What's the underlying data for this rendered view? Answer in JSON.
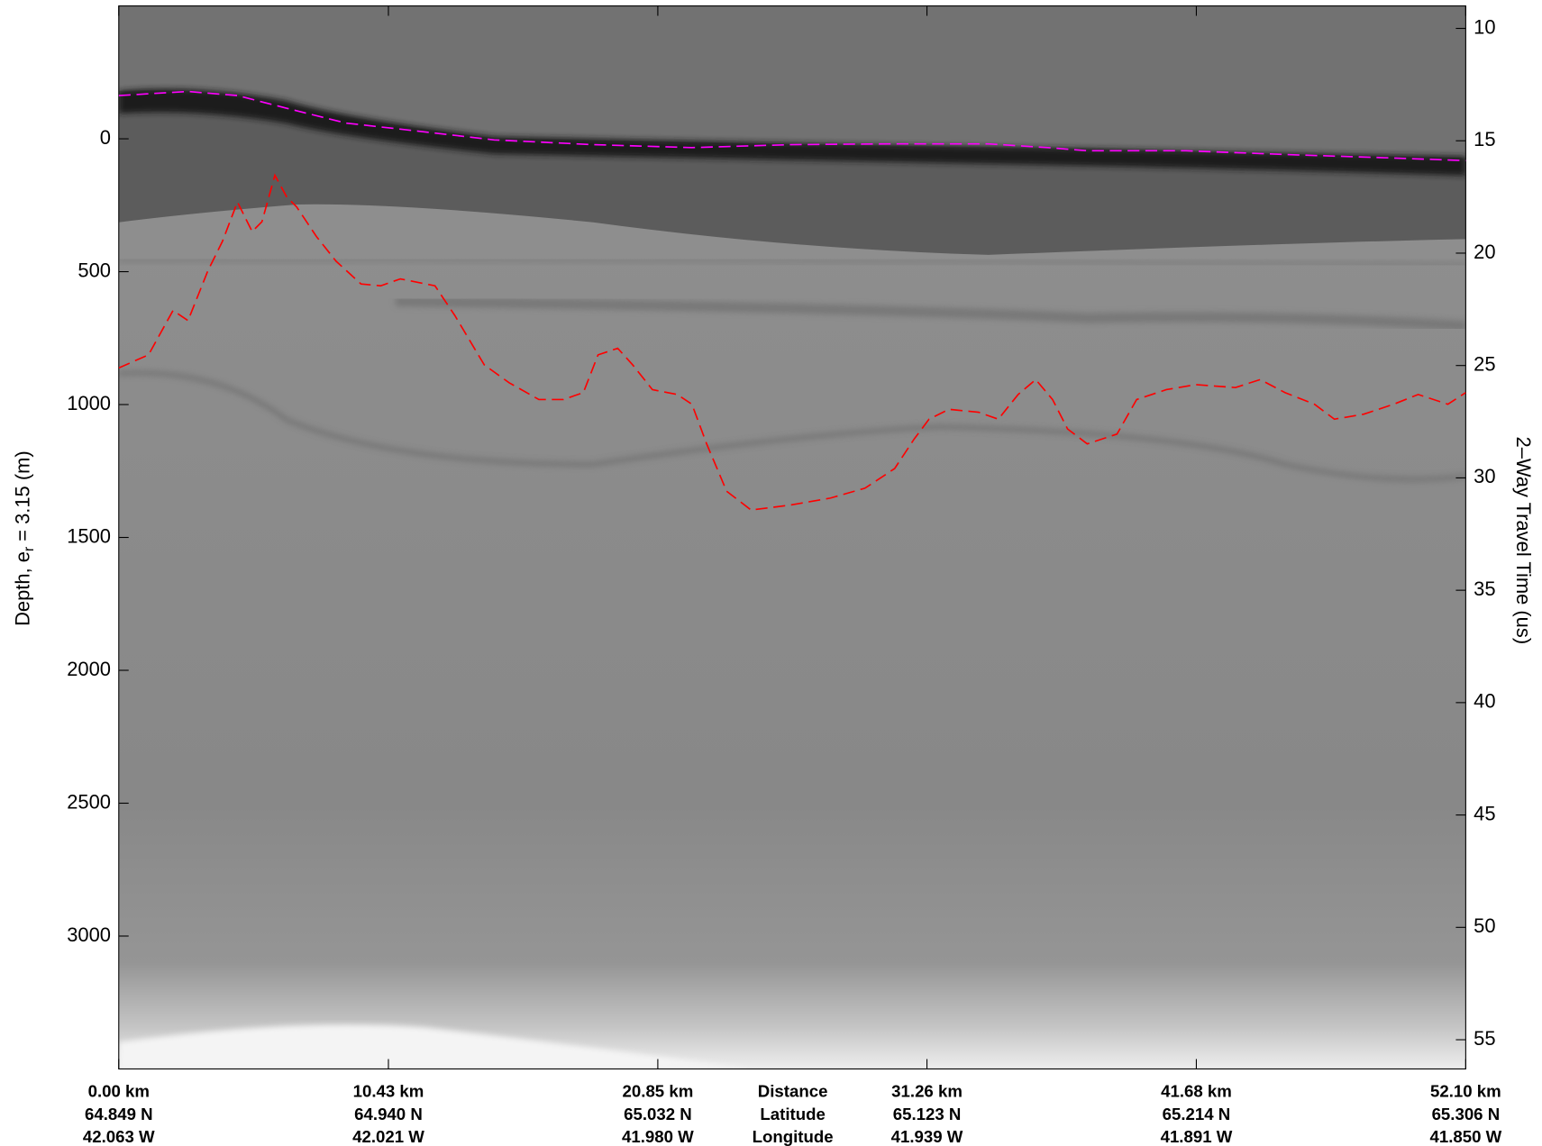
{
  "chart_data": {
    "type": "line",
    "y_label": {
      "main": "Depth, e",
      "subscript": "r",
      "rest": " = 3.15 (m)"
    },
    "y2_label": "2–Way Travel Time (us)",
    "xlim": [
      0,
      52.1
    ],
    "xticks": [
      {
        "value": 0,
        "label": "0.00 km"
      },
      {
        "value": 10.43,
        "label": "10.43 km"
      },
      {
        "value": 20.85,
        "label": "20.85 km"
      },
      {
        "value": 31.26,
        "label": "31.26 km"
      },
      {
        "value": 41.68,
        "label": "41.68 km"
      },
      {
        "value": 52.1,
        "label": "52.10 km"
      }
    ],
    "latitude": [
      "64.849 N",
      "64.940 N",
      "65.032 N",
      "65.123 N",
      "65.214 N",
      "65.306 N"
    ],
    "longitude": [
      "42.063 W",
      "42.021 W",
      "41.980 W",
      "41.939 W",
      "41.891 W",
      "41.850 W"
    ],
    "row_labels": [
      "Distance",
      "Latitude",
      "Longitude"
    ],
    "ylim": [
      -500,
      3500
    ],
    "y_reversed": true,
    "yticks": [
      0,
      500,
      1000,
      1500,
      2000,
      2500,
      3000
    ],
    "y2lim": [
      9,
      56.3
    ],
    "y2ticks": [
      10,
      15,
      20,
      25,
      30,
      35,
      40,
      45,
      50,
      55
    ],
    "series": [
      {
        "color": "#ff00ff",
        "dashed": true,
        "x": [
          0,
          2.68,
          4.59,
          6.5,
          8.79,
          11.47,
          14.52,
          18.35,
          22.17,
          25.99,
          29.82,
          33.64,
          35.93,
          37.46,
          41.28,
          45.11,
          48.93,
          52.1
        ],
        "values": [
          -163,
          -178,
          -163,
          -115,
          -59,
          -30,
          4,
          22,
          33,
          22,
          19,
          19,
          33,
          45,
          45,
          59,
          71,
          82
        ]
      },
      {
        "color": "#ff0000",
        "dashed": true,
        "x": [
          0,
          1.15,
          2.1,
          2.68,
          3.44,
          4.01,
          4.59,
          5.16,
          5.54,
          6.04,
          6.5,
          6.88,
          7.65,
          8.41,
          9.37,
          10.13,
          10.89,
          12.23,
          13.0,
          14.14,
          15.1,
          16.25,
          17.2,
          17.97,
          18.54,
          19.3,
          19.88,
          20.64,
          21.6,
          22.17,
          22.74,
          23.51,
          24.46,
          25.99,
          27.52,
          28.86,
          30.01,
          30.77,
          31.34,
          32.11,
          33.26,
          34.02,
          34.79,
          35.47,
          36.12,
          36.7,
          37.46,
          38.61,
          39.37,
          40.52,
          41.66,
          43.19,
          44.15,
          45.11,
          46.25,
          47.02,
          48.16,
          49.31,
          50.26,
          51.41,
          52.1
        ],
        "values": [
          862,
          813,
          646,
          684,
          498,
          386,
          238,
          349,
          312,
          137,
          219,
          256,
          368,
          461,
          546,
          553,
          527,
          553,
          665,
          851,
          918,
          981,
          981,
          955,
          813,
          788,
          851,
          944,
          962,
          999,
          1148,
          1326,
          1397,
          1378,
          1352,
          1315,
          1241,
          1129,
          1055,
          1018,
          1029,
          1055,
          962,
          906,
          981,
          1092,
          1148,
          1111,
          981,
          944,
          925,
          936,
          906,
          955,
          999,
          1055,
          1036,
          999,
          962,
          999,
          955
        ]
      }
    ]
  }
}
